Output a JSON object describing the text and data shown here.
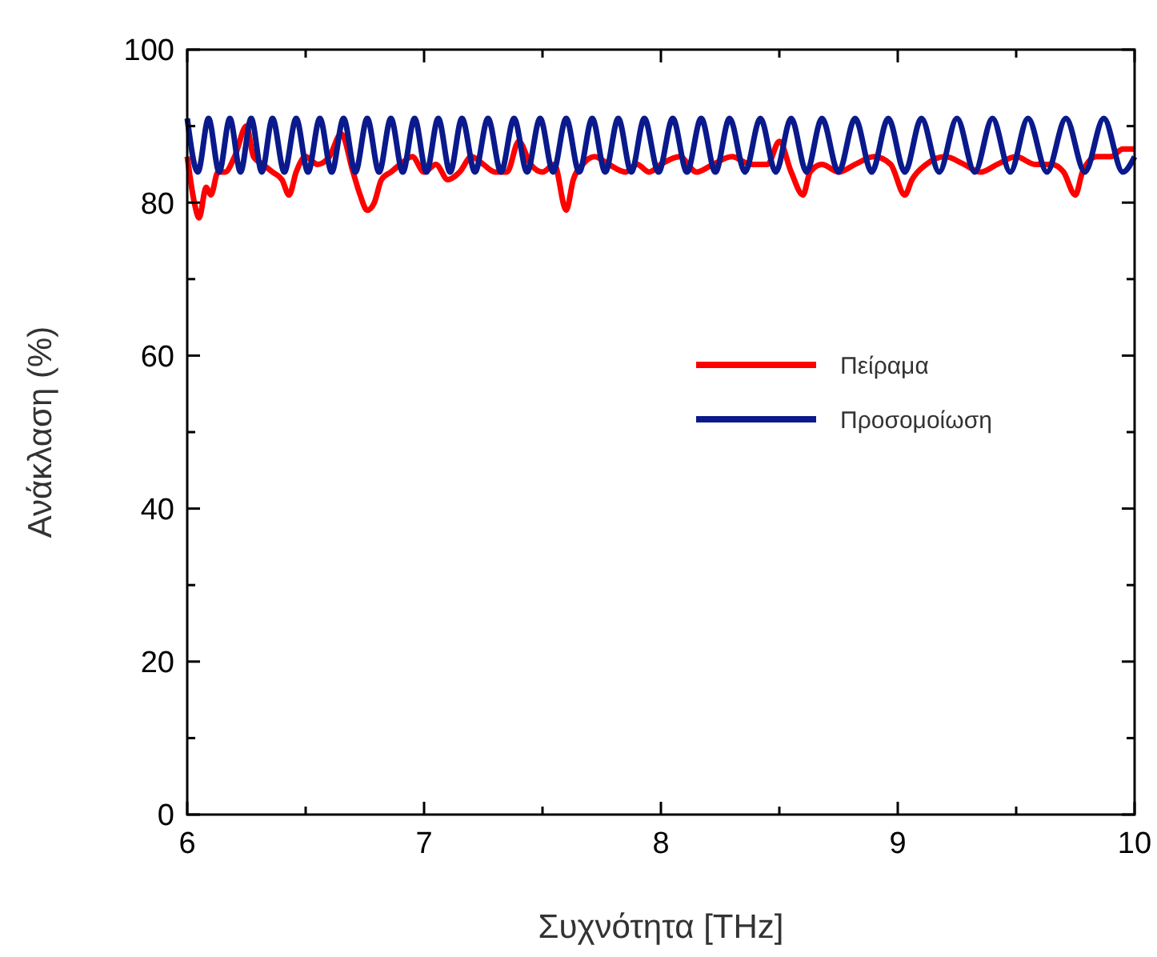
{
  "chart_data": {
    "type": "line",
    "xlabel": "Συχνότητα [THz]",
    "ylabel": "Ανάκλαση (%)",
    "xlim": [
      6,
      10
    ],
    "ylim": [
      0,
      100
    ],
    "xticks": [
      6,
      {
        "value": 6.5,
        "label": null
      },
      7,
      {
        "value": 7.5,
        "label": null
      },
      8,
      {
        "value": 8.5,
        "label": null
      },
      9,
      {
        "value": 9.5,
        "label": null
      },
      10
    ],
    "yticks": [
      0,
      {
        "value": 10,
        "label": null
      },
      20,
      {
        "value": 30,
        "label": null
      },
      40,
      {
        "value": 50,
        "label": null
      },
      60,
      {
        "value": 70,
        "label": null
      },
      80,
      {
        "value": 90,
        "label": null
      },
      100
    ],
    "grid": false,
    "legend": "right",
    "line_style": "solid",
    "marker": "none",
    "series": [
      {
        "name": "Πείραμα",
        "color": "#ff0000",
        "x": [
          6.0,
          6.03,
          6.05,
          6.08,
          6.1,
          6.13,
          6.16,
          6.2,
          6.25,
          6.28,
          6.32,
          6.36,
          6.4,
          6.43,
          6.46,
          6.5,
          6.55,
          6.6,
          6.65,
          6.7,
          6.73,
          6.76,
          6.79,
          6.82,
          6.86,
          6.9,
          6.95,
          7.0,
          7.05,
          7.1,
          7.15,
          7.2,
          7.25,
          7.3,
          7.35,
          7.4,
          7.45,
          7.5,
          7.55,
          7.6,
          7.63,
          7.67,
          7.72,
          7.78,
          7.85,
          7.9,
          7.95,
          8.0,
          8.08,
          8.15,
          8.22,
          8.3,
          8.38,
          8.45,
          8.5,
          8.55,
          8.6,
          8.63,
          8.68,
          8.75,
          8.82,
          8.9,
          8.97,
          9.03,
          9.06,
          9.12,
          9.2,
          9.28,
          9.35,
          9.42,
          9.5,
          9.58,
          9.65,
          9.7,
          9.75,
          9.78,
          9.84,
          9.9,
          9.95,
          10.0
        ],
        "values": [
          86,
          80,
          78,
          82,
          81,
          84,
          84,
          86,
          90,
          86,
          85,
          84,
          83,
          81,
          84,
          86,
          85,
          86,
          89,
          84,
          81,
          79,
          80,
          83,
          84,
          85,
          86,
          84,
          85,
          83,
          84,
          86,
          85,
          84,
          84,
          88,
          85,
          84,
          85,
          79,
          83,
          85,
          86,
          85,
          84,
          85,
          84,
          85,
          86,
          84,
          85,
          86,
          85,
          85,
          88,
          84,
          81,
          84,
          85,
          84,
          85,
          86,
          85,
          81,
          83,
          85,
          86,
          85,
          84,
          85,
          86,
          85,
          85,
          84,
          81,
          84,
          86,
          86,
          87,
          87
        ]
      },
      {
        "name": "Προσομοίωση",
        "color": "#0a1a8c",
        "x": [
          6.0,
          6.045,
          6.09,
          6.135,
          6.18,
          6.225,
          6.27,
          6.315,
          6.36,
          6.41,
          6.46,
          6.51,
          6.56,
          6.61,
          6.66,
          6.71,
          6.76,
          6.81,
          6.86,
          6.91,
          6.96,
          7.01,
          7.06,
          7.11,
          7.16,
          7.215,
          7.27,
          7.325,
          7.38,
          7.435,
          7.49,
          7.545,
          7.6,
          7.655,
          7.71,
          7.765,
          7.82,
          7.875,
          7.93,
          7.99,
          8.05,
          8.11,
          8.17,
          8.23,
          8.29,
          8.355,
          8.42,
          8.485,
          8.55,
          8.615,
          8.68,
          8.75,
          8.82,
          8.89,
          8.96,
          9.03,
          9.1,
          9.175,
          9.25,
          9.325,
          9.4,
          9.475,
          9.55,
          9.63,
          9.71,
          9.79,
          9.87,
          9.95,
          10.0
        ],
        "values": [
          91,
          84,
          91,
          84,
          91,
          84,
          91,
          84,
          91,
          84,
          91,
          84,
          91,
          84,
          91,
          84,
          91,
          84,
          91,
          84,
          91,
          84,
          91,
          84,
          91,
          84,
          91,
          84,
          91,
          84,
          91,
          84,
          91,
          84,
          91,
          84,
          91,
          84,
          91,
          84,
          91,
          84,
          91,
          84,
          91,
          84,
          91,
          84,
          91,
          84,
          91,
          84,
          91,
          84,
          91,
          84,
          91,
          84,
          91,
          84,
          91,
          84,
          91,
          84,
          91,
          84,
          91,
          84,
          86
        ]
      }
    ]
  }
}
